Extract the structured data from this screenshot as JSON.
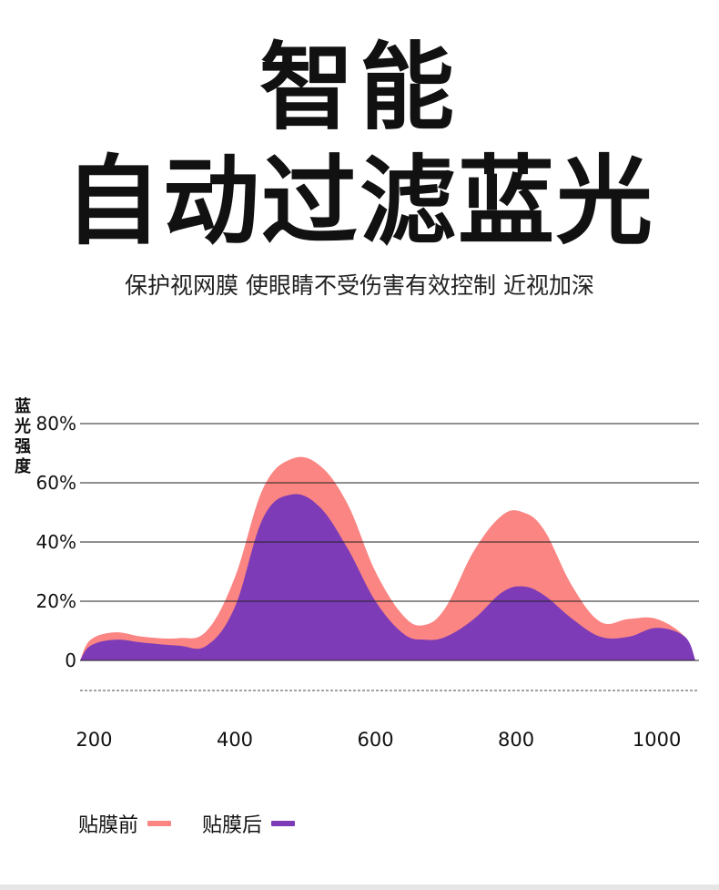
{
  "header": {
    "title_line1": "智能",
    "title_line2": "自动过滤蓝光",
    "subtitle": "保护视网膜 使眼睛不受伤害有效控制 近视加深"
  },
  "chart_data": {
    "type": "area",
    "ylabel": "蓝光强度",
    "yticks": [
      "80%",
      "60%",
      "40%",
      "20%",
      "0"
    ],
    "ytick_values": [
      80,
      60,
      40,
      20,
      0
    ],
    "xticks": [
      "200",
      "400",
      "600",
      "800",
      "1000"
    ],
    "xtick_values": [
      200,
      400,
      600,
      800,
      1000
    ],
    "xlim": [
      180,
      1060
    ],
    "ylim": [
      -10,
      80
    ],
    "grid": true,
    "legend_position": "bottom-left",
    "series": [
      {
        "name": "贴膜前",
        "color": "#fa8582",
        "x": [
          180,
          195,
          230,
          270,
          320,
          360,
          400,
          440,
          480,
          520,
          560,
          600,
          640,
          670,
          700,
          740,
          780,
          810,
          840,
          880,
          920,
          960,
          1000,
          1040,
          1055
        ],
        "values": [
          0,
          7,
          9.5,
          8,
          7.5,
          10,
          28,
          58,
          68,
          66,
          53,
          30,
          15,
          12,
          18,
          37,
          49,
          50,
          44,
          25,
          13,
          14,
          14,
          8,
          0
        ]
      },
      {
        "name": "贴膜后",
        "color": "#7d3bb8",
        "x": [
          180,
          195,
          230,
          270,
          320,
          360,
          400,
          440,
          480,
          520,
          560,
          600,
          640,
          670,
          700,
          740,
          780,
          810,
          840,
          880,
          920,
          960,
          1000,
          1040,
          1055
        ],
        "values": [
          0,
          5,
          7,
          6,
          5,
          5,
          18,
          48,
          56,
          52,
          38,
          20,
          9,
          7,
          8,
          14,
          23,
          25,
          22,
          14,
          8,
          8,
          11,
          8,
          0
        ]
      }
    ]
  }
}
